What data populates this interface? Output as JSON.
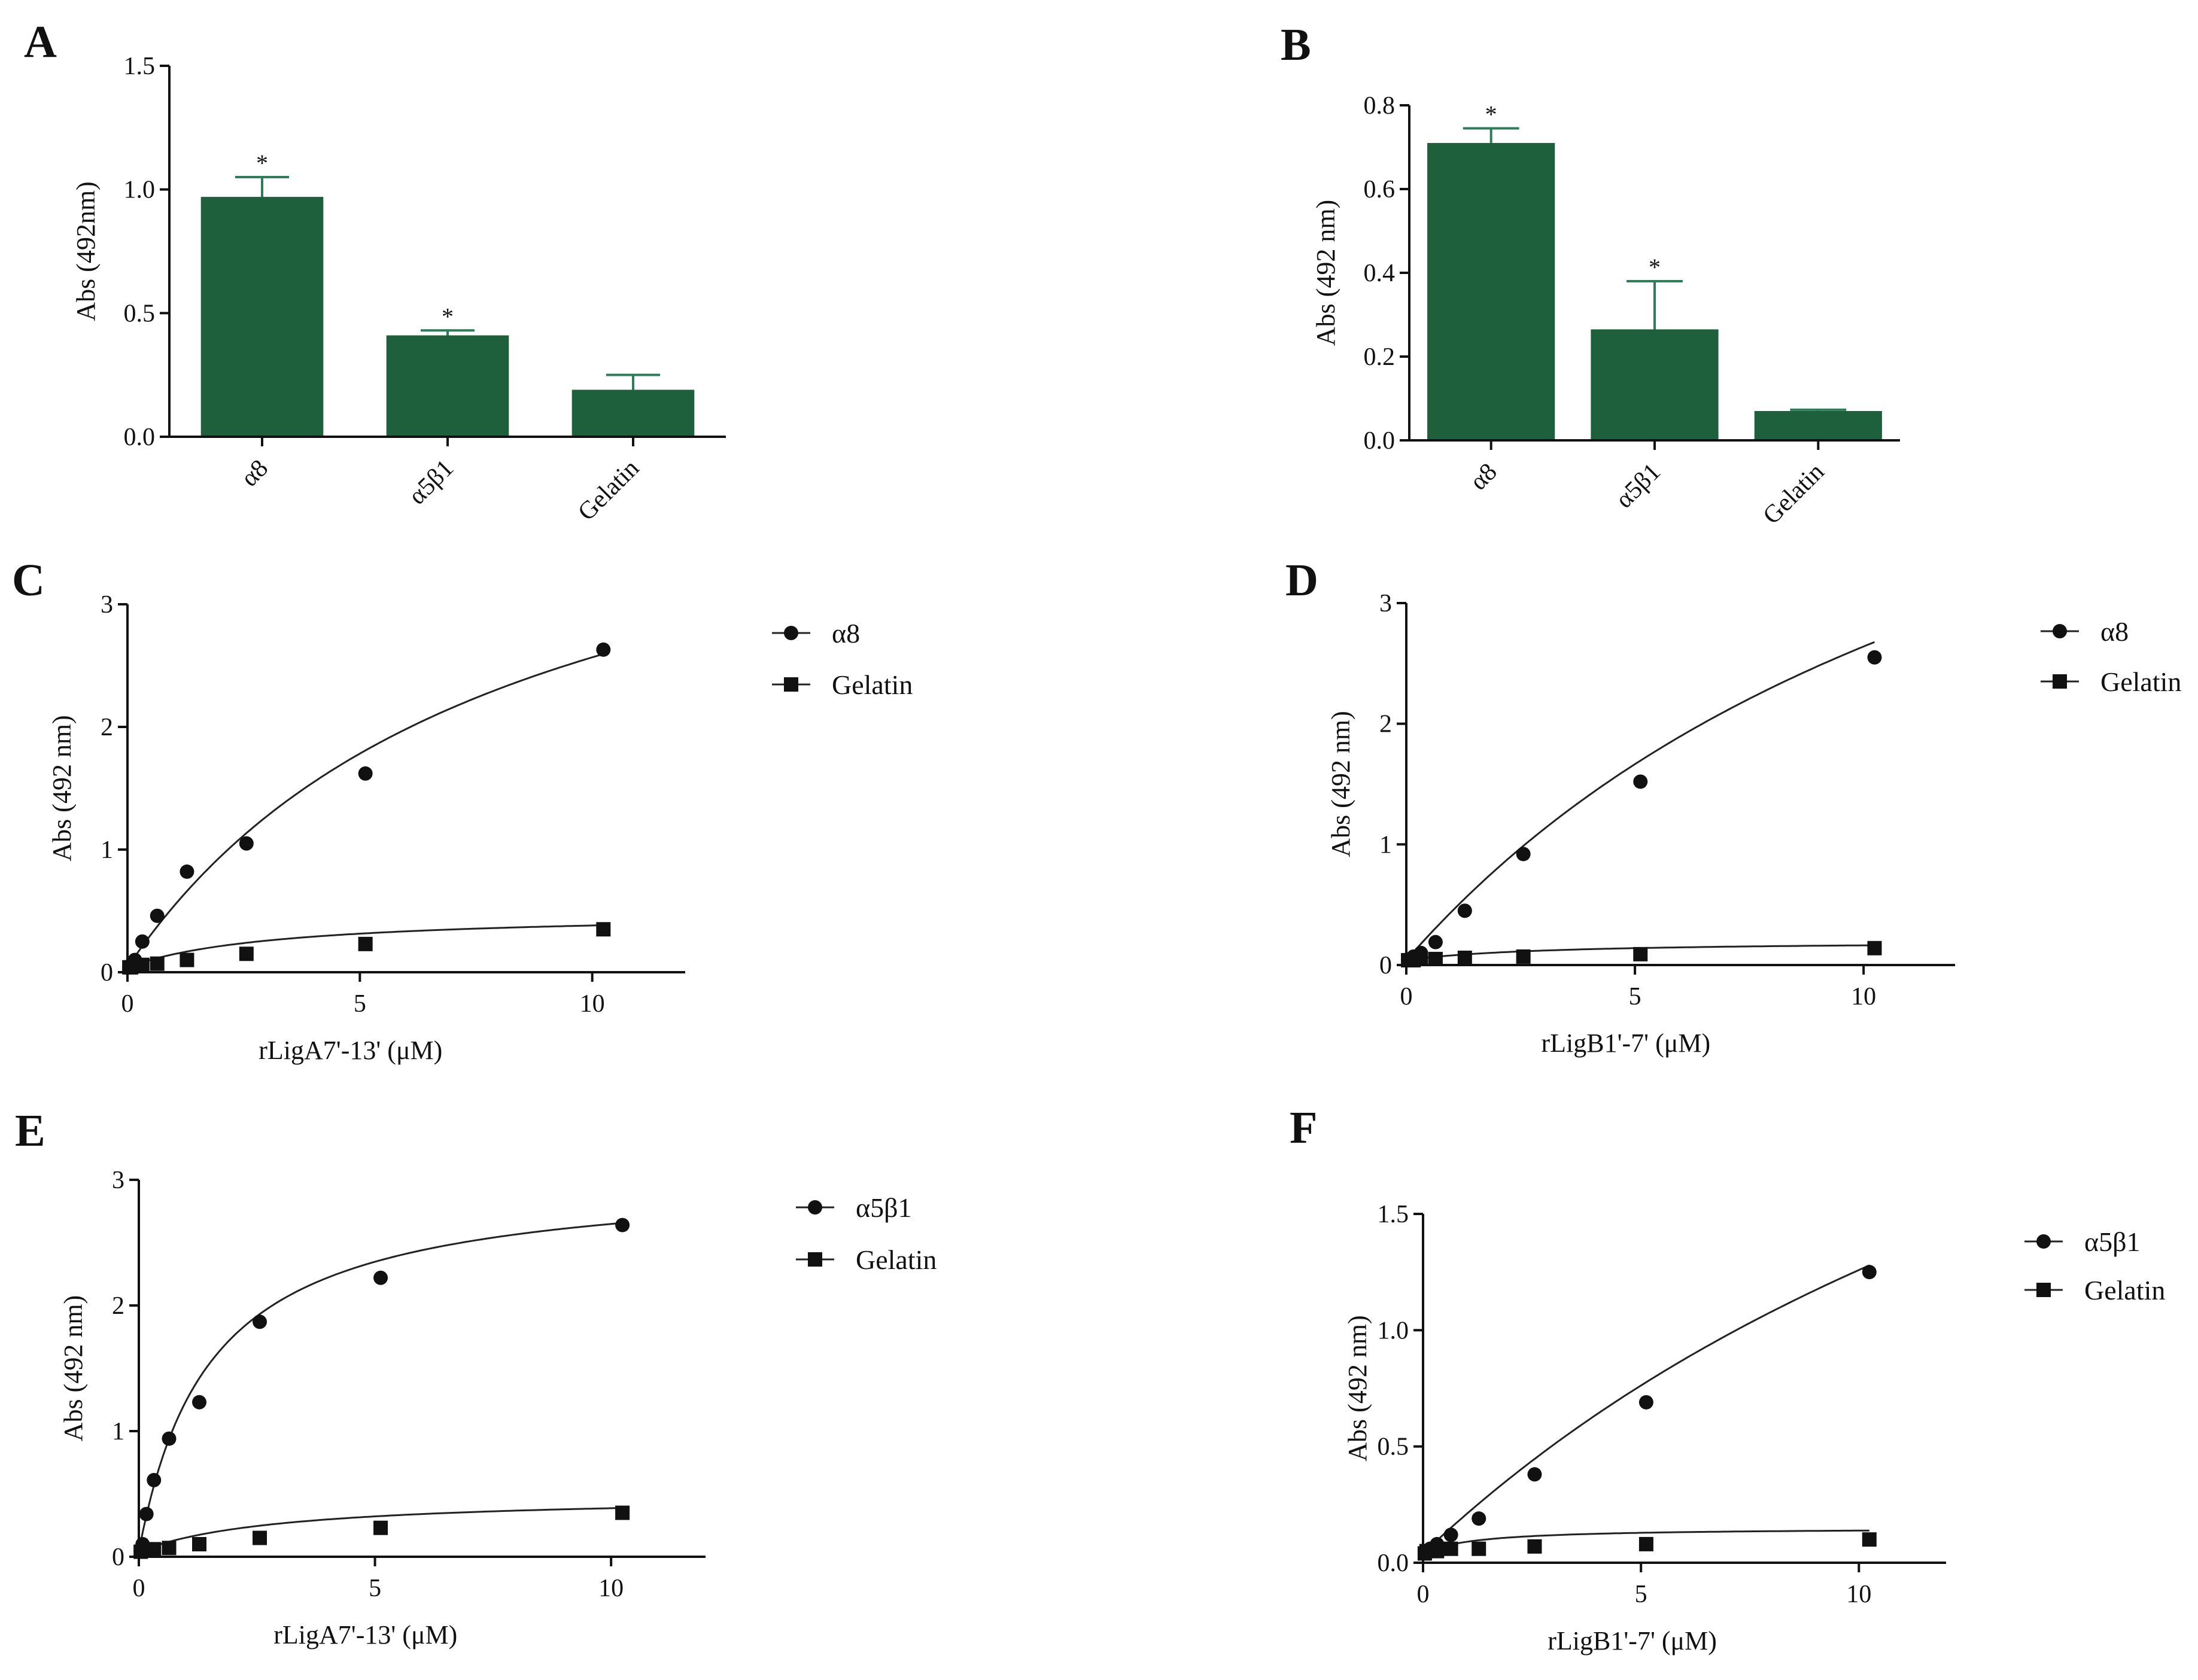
{
  "chart_data": [
    {
      "panel": "A",
      "type": "bar",
      "categories": [
        "α8",
        "α5β1",
        "Gelatin"
      ],
      "values": [
        0.97,
        0.41,
        0.19
      ],
      "errors": [
        0.08,
        0.02,
        0.06
      ],
      "significance": [
        "*",
        "*",
        ""
      ],
      "ylabel": "Abs (492nm)",
      "xlabel": "",
      "ylim": [
        0,
        1.5
      ],
      "yticks": [
        "0.0",
        "0.5",
        "1.0",
        "1.5"
      ],
      "bar_color": "#1e5f3c",
      "error_color": "#2e7d5a"
    },
    {
      "panel": "B",
      "type": "bar",
      "categories": [
        "α8",
        "α5β1",
        "Gelatin"
      ],
      "values": [
        0.71,
        0.265,
        0.07
      ],
      "errors": [
        0.035,
        0.115,
        0.003
      ],
      "significance": [
        "*",
        "*",
        ""
      ],
      "ylabel": "Abs (492 nm)",
      "xlabel": "",
      "ylim": [
        0,
        0.8
      ],
      "yticks": [
        "0.0",
        "0.2",
        "0.4",
        "0.6",
        "0.8"
      ],
      "bar_color": "#1e5f3c",
      "error_color": "#2e7d5a"
    },
    {
      "panel": "C",
      "type": "scatter",
      "xlabel": "rLigA7'-13' (μM)",
      "ylabel": "Abs (492 nm)",
      "xlim": [
        0,
        12
      ],
      "ylim": [
        0,
        3
      ],
      "xticks": [
        "0",
        "5",
        "10"
      ],
      "yticks": [
        "0",
        "1",
        "2",
        "3"
      ],
      "series": [
        {
          "name": "α8",
          "marker": "circle",
          "x": [
            0.04,
            0.08,
            0.16,
            0.32,
            0.64,
            1.28,
            2.56,
            5.12,
            10.24
          ],
          "y": [
            0.04,
            0.06,
            0.1,
            0.25,
            0.46,
            0.82,
            1.05,
            1.62,
            2.63
          ],
          "fit": {
            "bmax": 4.6,
            "kd": 8.2
          }
        },
        {
          "name": "Gelatin",
          "marker": "square",
          "x": [
            0.04,
            0.08,
            0.16,
            0.32,
            0.64,
            1.28,
            2.56,
            5.12,
            10.24
          ],
          "y": [
            0.04,
            0.04,
            0.05,
            0.06,
            0.07,
            0.1,
            0.15,
            0.23,
            0.35
          ],
          "fit": {
            "bmax": 0.45,
            "kd": 3.2
          }
        }
      ]
    },
    {
      "panel": "D",
      "type": "scatter",
      "xlabel": "rLigB1'-7' (μM)",
      "ylabel": "Abs (492 nm)",
      "xlim": [
        0,
        12
      ],
      "ylim": [
        0,
        3
      ],
      "xticks": [
        "0",
        "5",
        "10"
      ],
      "yticks": [
        "0",
        "1",
        "2",
        "3"
      ],
      "series": [
        {
          "name": "α8",
          "marker": "circle",
          "x": [
            0.04,
            0.08,
            0.16,
            0.32,
            0.64,
            1.28,
            2.56,
            5.12,
            10.24
          ],
          "y": [
            0.04,
            0.05,
            0.07,
            0.1,
            0.19,
            0.45,
            0.92,
            1.52,
            2.55
          ],
          "fit": {
            "bmax": 6.5,
            "kd": 15.0
          }
        },
        {
          "name": "Gelatin",
          "marker": "square",
          "x": [
            0.04,
            0.08,
            0.16,
            0.32,
            0.64,
            1.28,
            2.56,
            5.12,
            10.24
          ],
          "y": [
            0.04,
            0.04,
            0.04,
            0.05,
            0.05,
            0.06,
            0.07,
            0.09,
            0.14
          ],
          "fit": {
            "bmax": 0.16,
            "kd": 3.0
          }
        }
      ]
    },
    {
      "panel": "E",
      "type": "scatter",
      "xlabel": "rLigA7'-13' (μM)",
      "ylabel": "Abs (492 nm)",
      "xlim": [
        0,
        12
      ],
      "ylim": [
        0,
        3
      ],
      "xticks": [
        "0",
        "5",
        "10"
      ],
      "yticks": [
        "0",
        "1",
        "2",
        "3"
      ],
      "series": [
        {
          "name": "α5β1",
          "marker": "circle",
          "x": [
            0.04,
            0.08,
            0.16,
            0.32,
            0.64,
            1.28,
            2.56,
            5.12,
            10.24
          ],
          "y": [
            0.05,
            0.1,
            0.34,
            0.61,
            0.94,
            1.23,
            1.87,
            2.22,
            2.64
          ],
          "fit": {
            "bmax": 3.0,
            "kd": 1.5
          }
        },
        {
          "name": "Gelatin",
          "marker": "square",
          "x": [
            0.04,
            0.08,
            0.16,
            0.32,
            0.64,
            1.28,
            2.56,
            5.12,
            10.24
          ],
          "y": [
            0.04,
            0.05,
            0.05,
            0.06,
            0.07,
            0.1,
            0.15,
            0.23,
            0.35
          ],
          "fit": {
            "bmax": 0.45,
            "kd": 3.0
          }
        }
      ]
    },
    {
      "panel": "F",
      "type": "scatter",
      "xlabel": "rLigB1'-7' (μM)",
      "ylabel": "Abs (492 nm)",
      "xlim": [
        0,
        12
      ],
      "ylim": [
        0,
        1.5
      ],
      "xticks": [
        "0",
        "5",
        "10"
      ],
      "yticks": [
        "0.0",
        "0.5",
        "1.0",
        "1.5"
      ],
      "series": [
        {
          "name": "α5β1",
          "marker": "circle",
          "x": [
            0.04,
            0.08,
            0.16,
            0.32,
            0.64,
            1.28,
            2.56,
            5.12,
            10.24
          ],
          "y": [
            0.04,
            0.05,
            0.06,
            0.08,
            0.12,
            0.19,
            0.38,
            0.69,
            1.25
          ],
          "fit": {
            "bmax": 3.9,
            "kd": 22.0
          }
        },
        {
          "name": "Gelatin",
          "marker": "square",
          "x": [
            0.04,
            0.08,
            0.16,
            0.32,
            0.64,
            1.28,
            2.56,
            5.12,
            10.24
          ],
          "y": [
            0.04,
            0.05,
            0.05,
            0.05,
            0.06,
            0.06,
            0.07,
            0.08,
            0.1
          ],
          "fit": {
            "bmax": 0.11,
            "kd": 1.2
          }
        }
      ]
    }
  ]
}
